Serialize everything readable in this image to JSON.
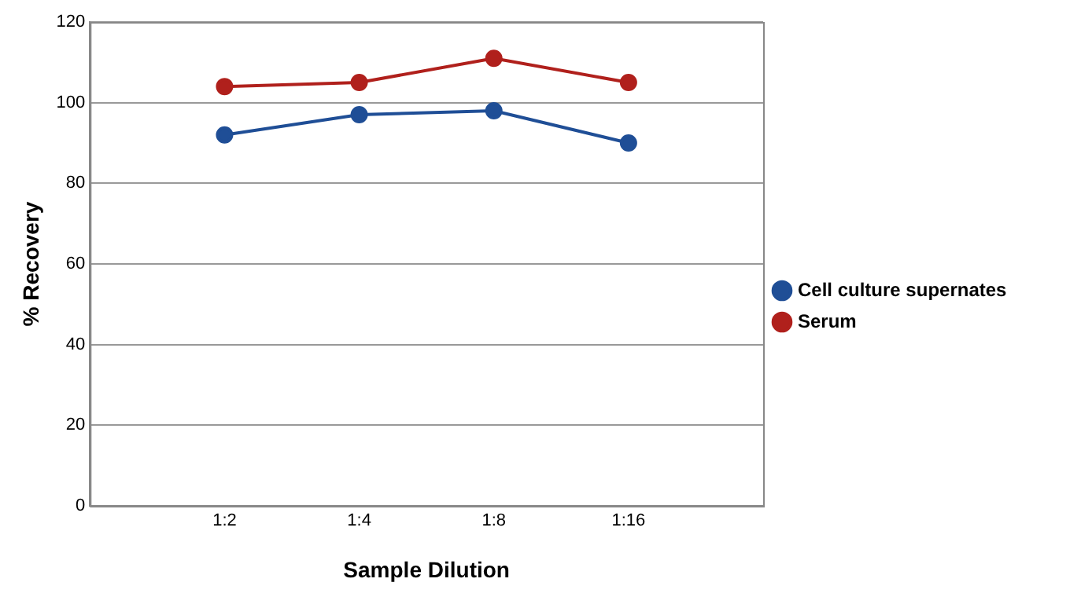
{
  "chart_data": {
    "type": "line",
    "xlabel": "Sample Dilution",
    "ylabel": "% Recovery",
    "categories": [
      "1:2",
      "1:4",
      "1:8",
      "1:16"
    ],
    "series": [
      {
        "name": "Cell culture supernates",
        "color": "#1f4e96",
        "values": [
          92,
          97,
          98,
          90
        ]
      },
      {
        "name": "Serum",
        "color": "#b0201c",
        "values": [
          104,
          105,
          111,
          105
        ]
      }
    ],
    "ylim": [
      0,
      120
    ],
    "yticks": [
      0,
      20,
      40,
      60,
      80,
      100,
      120
    ],
    "grid": "y",
    "legend": "right",
    "marker": "circle",
    "line_style": "solid"
  }
}
